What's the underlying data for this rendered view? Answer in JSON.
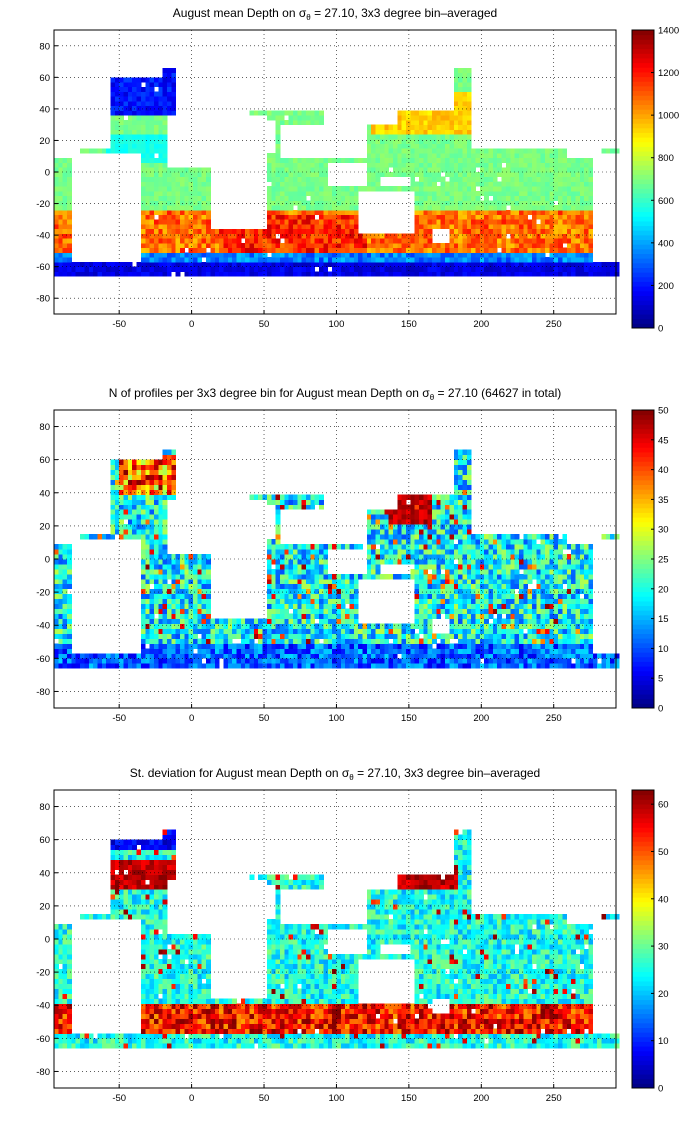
{
  "chart_data": [
    {
      "type": "heatmap",
      "title": {
        "pre": "August mean Depth on ",
        "sigma": "σ",
        "sub": "θ",
        "post": " = 27.10, 3x3 degree bin–averaged"
      },
      "xlim": [
        -95,
        293
      ],
      "ylim": [
        -90,
        90
      ],
      "xticks": [
        -50,
        0,
        50,
        100,
        150,
        200,
        250
      ],
      "yticks": [
        -80,
        -60,
        -40,
        -20,
        0,
        20,
        40,
        60,
        80
      ],
      "grid": "dotted",
      "colorbar": {
        "min": 0,
        "max": 1400,
        "ticks": [
          0,
          200,
          400,
          600,
          800,
          1000,
          1200,
          1400
        ]
      },
      "colormap": "jet",
      "field": "depth"
    },
    {
      "type": "heatmap",
      "title": {
        "pre": "N of profiles per 3x3 degree bin for August mean Depth on ",
        "sigma": "σ",
        "sub": "θ",
        "post": " = 27.10 (64627 in total)"
      },
      "xlim": [
        -95,
        293
      ],
      "ylim": [
        -90,
        90
      ],
      "xticks": [
        -50,
        0,
        50,
        100,
        150,
        200,
        250
      ],
      "yticks": [
        -80,
        -60,
        -40,
        -20,
        0,
        20,
        40,
        60,
        80
      ],
      "grid": "dotted",
      "colorbar": {
        "min": 0,
        "max": 50,
        "ticks": [
          0,
          5,
          10,
          15,
          20,
          25,
          30,
          35,
          40,
          45,
          50
        ]
      },
      "colormap": "jet",
      "field": "count"
    },
    {
      "type": "heatmap",
      "title": {
        "pre": "St. deviation for August mean Depth on ",
        "sigma": "σ",
        "sub": "θ",
        "post": " = 27.10, 3x3 degree bin–averaged"
      },
      "xlim": [
        -95,
        293
      ],
      "ylim": [
        -90,
        90
      ],
      "xticks": [
        -50,
        0,
        50,
        100,
        150,
        200,
        250
      ],
      "yticks": [
        -80,
        -60,
        -40,
        -20,
        0,
        20,
        40,
        60,
        80
      ],
      "grid": "dotted",
      "colorbar": {
        "min": 0,
        "max": 63,
        "ticks": [
          0,
          10,
          20,
          30,
          40,
          50,
          60
        ]
      },
      "colormap": "jet",
      "field": "std"
    }
  ]
}
